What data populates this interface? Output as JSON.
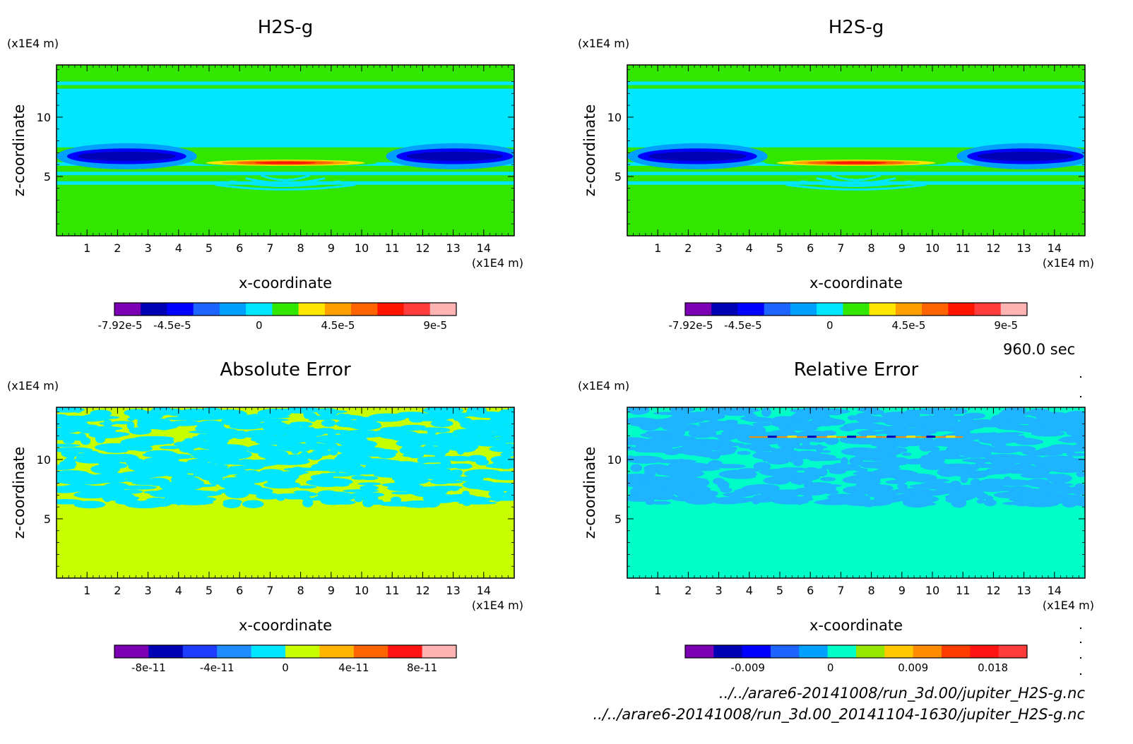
{
  "time_label": "960.0 sec",
  "file_lines": [
    "../../arare6-20141008/run_3d.00/jupiter_H2S-g.nc",
    "../../arare6-20141008/run_3d.00_20141104-1630/jupiter_H2S-g.nc"
  ],
  "chart_data": [
    {
      "type": "heatmap",
      "title": "H2S-g",
      "xlabel": "x-coordinate",
      "ylabel": "z-coordinate",
      "x_unit": "(x1E4 m)",
      "y_unit": "(x1E4 m)",
      "xlim": [
        0,
        15
      ],
      "ylim": [
        0,
        14.4
      ],
      "x_ticks": [
        "1",
        "2",
        "3",
        "4",
        "5",
        "6",
        "7",
        "8",
        "9",
        "10",
        "11",
        "12",
        "13",
        "14"
      ],
      "y_ticks": [
        "5",
        "10"
      ],
      "colorbar": {
        "colors": [
          "#7b00b4",
          "#0000b4",
          "#0000ff",
          "#1e64ff",
          "#00a0ff",
          "#00e6ff",
          "#32e600",
          "#ffe600",
          "#ffa000",
          "#ff6400",
          "#ff1400",
          "#ff3c3c",
          "#ffb4b4"
        ],
        "labels": [
          "-7.92e-5",
          "-4.5e-5",
          "0",
          "4.5e-5",
          "9e-5"
        ]
      },
      "field": "stratified"
    },
    {
      "type": "heatmap",
      "title": "H2S-g",
      "xlabel": "x-coordinate",
      "ylabel": "z-coordinate",
      "x_unit": "(x1E4 m)",
      "y_unit": "(x1E4 m)",
      "xlim": [
        0,
        15
      ],
      "ylim": [
        0,
        14.4
      ],
      "x_ticks": [
        "1",
        "2",
        "3",
        "4",
        "5",
        "6",
        "7",
        "8",
        "9",
        "10",
        "11",
        "12",
        "13",
        "14"
      ],
      "y_ticks": [
        "5",
        "10"
      ],
      "colorbar": {
        "colors": [
          "#7b00b4",
          "#0000b4",
          "#0000ff",
          "#1e64ff",
          "#00a0ff",
          "#00e6ff",
          "#32e600",
          "#ffe600",
          "#ffa000",
          "#ff6400",
          "#ff1400",
          "#ff3c3c",
          "#ffb4b4"
        ],
        "labels": [
          "-7.92e-5",
          "-4.5e-5",
          "0",
          "4.5e-5",
          "9e-5"
        ]
      },
      "field": "stratified"
    },
    {
      "type": "heatmap",
      "title": "Absolute Error",
      "xlabel": "x-coordinate",
      "ylabel": "z-coordinate",
      "x_unit": "(x1E4 m)",
      "y_unit": "(x1E4 m)",
      "xlim": [
        0,
        15
      ],
      "ylim": [
        0,
        14.4
      ],
      "x_ticks": [
        "1",
        "2",
        "3",
        "4",
        "5",
        "6",
        "7",
        "8",
        "9",
        "10",
        "11",
        "12",
        "13",
        "14"
      ],
      "y_ticks": [
        "5",
        "10"
      ],
      "colorbar": {
        "colors": [
          "#7b00b4",
          "#0000b4",
          "#1e3cff",
          "#1e8cff",
          "#00e6ff",
          "#c8ff00",
          "#ffb400",
          "#ff6400",
          "#ff1414",
          "#ffb4b4"
        ],
        "labels": [
          "-8e-11",
          "-4e-11",
          "0",
          "4e-11",
          "8e-11"
        ]
      },
      "field": "noise",
      "background": "#c8ff00",
      "noise_color": "#00e6ff"
    },
    {
      "type": "heatmap",
      "title": "Relative Error",
      "xlabel": "x-coordinate",
      "ylabel": "z-coordinate",
      "x_unit": "(x1E4 m)",
      "y_unit": "(x1E4 m)",
      "xlim": [
        0,
        15
      ],
      "ylim": [
        0,
        14.4
      ],
      "x_ticks": [
        "1",
        "2",
        "3",
        "4",
        "5",
        "6",
        "7",
        "8",
        "9",
        "10",
        "11",
        "12",
        "13",
        "14"
      ],
      "y_ticks": [
        "5",
        "10"
      ],
      "colorbar": {
        "colors": [
          "#7b00b4",
          "#0000b4",
          "#0000ff",
          "#1e64ff",
          "#00a0ff",
          "#00ffc8",
          "#96e600",
          "#ffc800",
          "#ff8c00",
          "#ff3c00",
          "#ff1414",
          "#ff3c3c"
        ],
        "labels": [
          "-0.009",
          "0",
          "0.009",
          "0.018"
        ]
      },
      "field": "noise",
      "background": "#00ffc8",
      "noise_color": "#1eb4ff",
      "stripe": true
    }
  ]
}
